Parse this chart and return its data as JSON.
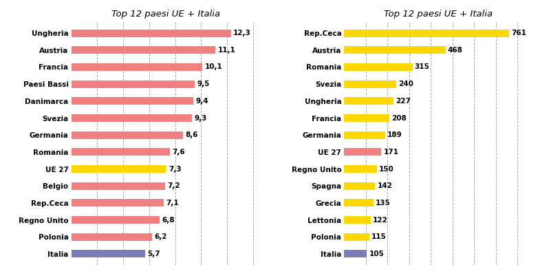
{
  "left": {
    "title": "Top 12 paesi UE + Italia",
    "categories": [
      "Ungheria",
      "Austria",
      "Francia",
      "Paesi Bassi",
      "Danimarca",
      "Svezia",
      "Germania",
      "Romania",
      "UE 27",
      "Belgio",
      "Rep.Ceca",
      "Regno Unito",
      "Polonia",
      "Italia"
    ],
    "values": [
      12.3,
      11.1,
      10.1,
      9.5,
      9.4,
      9.3,
      8.6,
      7.6,
      7.3,
      7.2,
      7.1,
      6.8,
      6.2,
      5.7
    ],
    "colors": [
      "#F08080",
      "#F08080",
      "#F08080",
      "#F08080",
      "#F08080",
      "#F08080",
      "#F08080",
      "#F08080",
      "#FFD700",
      "#F08080",
      "#F08080",
      "#F08080",
      "#F08080",
      "#7B7DB5"
    ],
    "xlim": [
      0,
      14.5
    ],
    "xticks": [
      2,
      4,
      6,
      8,
      10,
      12,
      14
    ]
  },
  "right": {
    "title": "Top 12 paesi UE + Italia",
    "categories": [
      "Rep.Ceca",
      "Austria",
      "Romania",
      "Svezia",
      "Ungheria",
      "Francia",
      "Germania",
      "UE 27",
      "Regno Unito",
      "Spagna",
      "Grecia",
      "Lettonia",
      "Polonia",
      "Italia"
    ],
    "values": [
      761,
      468,
      315,
      240,
      227,
      208,
      189,
      171,
      150,
      142,
      135,
      122,
      115,
      105
    ],
    "colors": [
      "#FFD700",
      "#FFD700",
      "#FFD700",
      "#FFD700",
      "#FFD700",
      "#FFD700",
      "#FFD700",
      "#F08080",
      "#FFD700",
      "#FFD700",
      "#FFD700",
      "#FFD700",
      "#FFD700",
      "#7B7DB5"
    ],
    "xlim": [
      0,
      870
    ],
    "xticks": [
      100,
      200,
      300,
      400,
      500,
      600,
      700,
      800
    ]
  },
  "label_fontsize": 7.5,
  "title_fontsize": 9.5,
  "value_fontsize": 7.5,
  "bar_height": 0.45,
  "background_color": "#FFFFFF",
  "grid_color": "#AAAAAA",
  "text_color": "#000000",
  "fig_width": 7.98,
  "fig_height": 4.01
}
